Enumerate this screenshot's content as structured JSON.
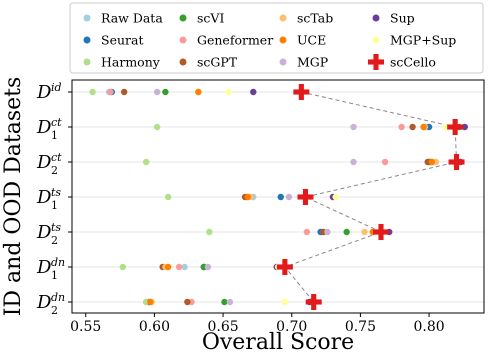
{
  "chart_data": {
    "type": "scatter",
    "xlabel": "Overall Score",
    "ylabel": "ID and OOD Datasets",
    "xlim": [
      0.54,
      0.84
    ],
    "x_ticks": [
      "0.55",
      "0.60",
      "0.65",
      "0.70",
      "0.75",
      "0.80"
    ],
    "x_tick_values": [
      0.55,
      0.6,
      0.65,
      0.7,
      0.75,
      0.8
    ],
    "grid": "horizontal",
    "legend_position": "top",
    "categories": [
      {
        "base": "D",
        "sup": "id",
        "sub": ""
      },
      {
        "base": "D",
        "sup": "ct",
        "sub": "1"
      },
      {
        "base": "D",
        "sup": "ct",
        "sub": "2"
      },
      {
        "base": "D",
        "sup": "ts",
        "sub": "1"
      },
      {
        "base": "D",
        "sup": "ts",
        "sub": "2"
      },
      {
        "base": "D",
        "sup": "dn",
        "sub": "1"
      },
      {
        "base": "D",
        "sup": "dn",
        "sub": "2"
      }
    ],
    "series": [
      {
        "name": "Raw Data",
        "color": "#a6cee3",
        "marker": "dot",
        "values": [
          0.567,
          0.798,
          0.803,
          0.672,
          0.722,
          0.622,
          0.594
        ]
      },
      {
        "name": "Seurat",
        "color": "#1f78b4",
        "marker": "dot",
        "values": [
          0.569,
          0.8,
          0.801,
          0.692,
          0.721,
          0.636,
          0.596
        ]
      },
      {
        "name": "Harmony",
        "color": "#b2df8a",
        "marker": "dot",
        "values": [
          0.555,
          0.602,
          0.594,
          0.61,
          0.64,
          0.577,
          0.594
        ]
      },
      {
        "name": "scVI",
        "color": "#33a02c",
        "marker": "dot",
        "values": [
          0.608,
          0.822,
          0.8,
          0.668,
          0.74,
          0.636,
          0.651
        ]
      },
      {
        "name": "Geneformer",
        "color": "#fb9a99",
        "marker": "dot",
        "values": [
          0.568,
          0.78,
          0.768,
          0.668,
          0.711,
          0.618,
          0.627
        ]
      },
      {
        "name": "scGPT",
        "color": "#b15928",
        "marker": "dot",
        "values": [
          0.578,
          0.788,
          0.799,
          0.666,
          0.723,
          0.606,
          0.624
        ]
      },
      {
        "name": "scTab",
        "color": "#fdbf6f",
        "marker": "dot",
        "values": [
          0.632,
          0.797,
          0.805,
          0.67,
          0.753,
          0.608,
          0.598
        ]
      },
      {
        "name": "UCE",
        "color": "#ff7f00",
        "marker": "dot",
        "values": [
          0.632,
          0.796,
          0.802,
          0.668,
          0.759,
          0.61,
          0.597
        ]
      },
      {
        "name": "MGP",
        "color": "#cab2d6",
        "marker": "dot",
        "values": [
          0.602,
          0.745,
          0.745,
          0.698,
          0.726,
          0.639,
          0.655
        ]
      },
      {
        "name": "Sup",
        "color": "#6a3d9a",
        "marker": "dot",
        "values": [
          0.672,
          0.826,
          0.823,
          0.73,
          0.771,
          0.689,
          0.713
        ]
      },
      {
        "name": "MGP+Sup",
        "color": "#ffff99",
        "marker": "dot",
        "values": [
          0.654,
          0.812,
          0.818,
          0.732,
          0.762,
          0.69,
          0.695
        ]
      },
      {
        "name": "scCello",
        "color": "#e31a1c",
        "marker": "cross",
        "values": [
          0.707,
          0.819,
          0.82,
          0.71,
          0.765,
          0.695,
          0.716
        ]
      }
    ],
    "connector": {
      "series": "scCello",
      "style": "dashed",
      "color": "#888888"
    }
  }
}
